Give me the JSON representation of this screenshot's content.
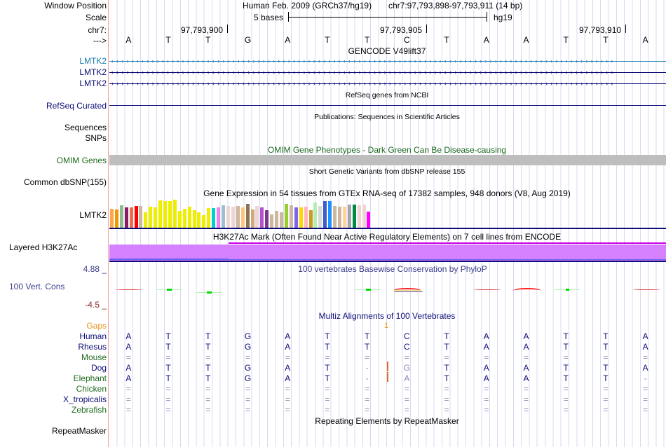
{
  "header": {
    "window_position_label": "Window Position",
    "scale_label": "Scale",
    "chrom_label": "chr7:",
    "strand_label": "--->",
    "assembly_title": "Human Feb. 2009 (GRCh37/hg19)",
    "position": "chr7:97,793,898-97,793,911 (14 bp)",
    "scale_text": "5 bases",
    "scale_db": "hg19",
    "coords": [
      "97,793,900",
      "97,793,905",
      "97,793,910"
    ]
  },
  "sequence": [
    "A",
    "T",
    "T",
    "G",
    "A",
    "T",
    "T",
    "C",
    "T",
    "A",
    "A",
    "T",
    "T",
    "A"
  ],
  "tracks": {
    "gencode": {
      "title": "GENCODE V49lift37",
      "items": [
        {
          "label": "LMTK2",
          "color": "#1a7ab0"
        },
        {
          "label": "LMTK2",
          "color": "#0c0c78"
        },
        {
          "label": "LMTK2",
          "color": "#0c0c78"
        }
      ]
    },
    "refseq": {
      "title": "RefSeq genes from NCBI",
      "label": "RefSeq Curated",
      "color": "#0c0c78"
    },
    "publications": {
      "title": "Publications: Sequences in Scientific Articles",
      "labels": [
        "Sequences",
        "SNPs"
      ]
    },
    "omim": {
      "title": "OMIM Gene Phenotypes - Dark Green Can Be Disease-causing",
      "label": "OMIM Genes",
      "color": "#1e6b1e",
      "bar_color": "#bebebe"
    },
    "dbsnp": {
      "title": "Short Genetic Variants from dbSNP release 155",
      "label": "Common dbSNP(155)"
    },
    "gtex": {
      "title": "Gene Expression in 54 tissues from GTEx RNA-seq of 17382 samples, 948 donors (V8, Aug 2019)",
      "label": "LMTK2"
    },
    "h3k27ac": {
      "title": "H3K27Ac Mark (Often Found Near Active Regulatory Elements) on 7 cell lines from ENCODE",
      "label": "Layered H3K27Ac",
      "color": "#d580ff"
    },
    "phylop": {
      "title": "100 vertebrates Basewise Conservation by PhyloP",
      "label": "100 Vert. Cons",
      "max_label": "4.88 _",
      "min_label": "-4.5 _"
    },
    "multiz": {
      "title": "Multiz Alignments of 100 Vertebrates",
      "gaps_label": "Gaps",
      "gap_count": "1",
      "species": [
        {
          "name": "Human",
          "color": "#0c0c78",
          "seq": [
            "A",
            "T",
            "T",
            "G",
            "A",
            "T",
            "T",
            "C",
            "T",
            "A",
            "A",
            "T",
            "T",
            "A"
          ]
        },
        {
          "name": "Rhesus",
          "color": "#0c0c78",
          "seq": [
            "A",
            "T",
            "T",
            "G",
            "A",
            "T",
            "T",
            "C",
            "T",
            "A",
            "A",
            "T",
            "T",
            "A"
          ]
        },
        {
          "name": "Mouse",
          "color": "#1e6b1e",
          "seq": [
            "=",
            "=",
            "=",
            "=",
            "=",
            "=",
            "=",
            "=",
            "=",
            "=",
            "=",
            "=",
            "=",
            "="
          ]
        },
        {
          "name": "Dog",
          "color": "#0c0c78",
          "seq": [
            "A",
            "T",
            "T",
            "G",
            "A",
            "T",
            "-",
            "G",
            "T",
            "A",
            "A",
            "T",
            "T",
            "A"
          ]
        },
        {
          "name": "Elephant",
          "color": "#1e6b1e",
          "seq": [
            "A",
            "T",
            "T",
            "G",
            "A",
            "T",
            "-",
            "A",
            "T",
            "A",
            "A",
            "T",
            "T",
            "-"
          ]
        },
        {
          "name": "Chicken",
          "color": "#1e6b1e",
          "seq": [
            "=",
            "=",
            "=",
            "=",
            "=",
            "=",
            "=",
            "=",
            "=",
            "=",
            "=",
            "=",
            "=",
            "="
          ]
        },
        {
          "name": "X_tropicalis",
          "color": "#0c0c78",
          "seq": [
            "=",
            "=",
            "=",
            "=",
            "=",
            "=",
            "=",
            "=",
            "=",
            "=",
            "=",
            "=",
            "=",
            "="
          ]
        },
        {
          "name": "Zebrafish",
          "color": "#1e6b1e",
          "seq": [
            "=",
            "=",
            "=",
            "=",
            "=",
            "=",
            "=",
            "=",
            "=",
            "=",
            "=",
            "=",
            "=",
            "="
          ]
        }
      ]
    },
    "repeatmasker": {
      "title": "Repeating Elements by RepeatMasker",
      "label": "RepeatMasker"
    }
  },
  "chart_data": {
    "type": "bar",
    "title": "Gene Expression in 54 tissues from GTEx RNA-seq of 17382 samples, 948 donors (V8, Aug 2019)",
    "xlabel": "",
    "ylabel": "",
    "values": [
      26,
      25,
      31,
      28,
      28,
      30,
      30,
      21,
      29,
      28,
      38,
      37,
      37,
      39,
      23,
      26,
      29,
      24,
      21,
      18,
      27,
      27,
      28,
      31,
      30,
      29,
      30,
      28,
      33,
      25,
      30,
      28,
      24,
      19,
      23,
      21,
      33,
      31,
      28,
      28,
      29,
      24,
      35,
      30,
      37,
      37,
      30,
      29,
      29,
      32,
      32,
      31,
      32,
      22
    ],
    "colors": [
      "#ffa54f",
      "#ee9a00",
      "#8fbc8f",
      "#8b1c62",
      "#ee6a50",
      "#ff0000",
      "#cdb79e",
      "#eeee00",
      "#eeee00",
      "#eeee00",
      "#eeee00",
      "#eeee00",
      "#eeee00",
      "#eeee00",
      "#eeee00",
      "#eeee00",
      "#eeee00",
      "#eeee00",
      "#eeee00",
      "#eeee00",
      "#eeee00",
      "#00ced1",
      "#ee82ee",
      "#9ac0cd",
      "#eed5d2",
      "#eed5d2",
      "#cdb79e",
      "#ffc580",
      "#8b7355",
      "#cdaa7d",
      "#eed5d2",
      "#b452cd",
      "#7a378b",
      "#cdb79e",
      "#cdb79e",
      "#cdb79e",
      "#9acd32",
      "#cdb79e",
      "#7a67ee",
      "#ffd700",
      "#ffb6c1",
      "#cd9b1d",
      "#b4eeb4",
      "#d9d9d9",
      "#3a5fcd",
      "#1e90ff",
      "#cdb79e",
      "#cdb79e",
      "#ffd39b",
      "#a6a6a6",
      "#008b45",
      "#eed5d2",
      "#eed5d2",
      "#ff00ff"
    ],
    "ylim": [
      0,
      40
    ]
  }
}
